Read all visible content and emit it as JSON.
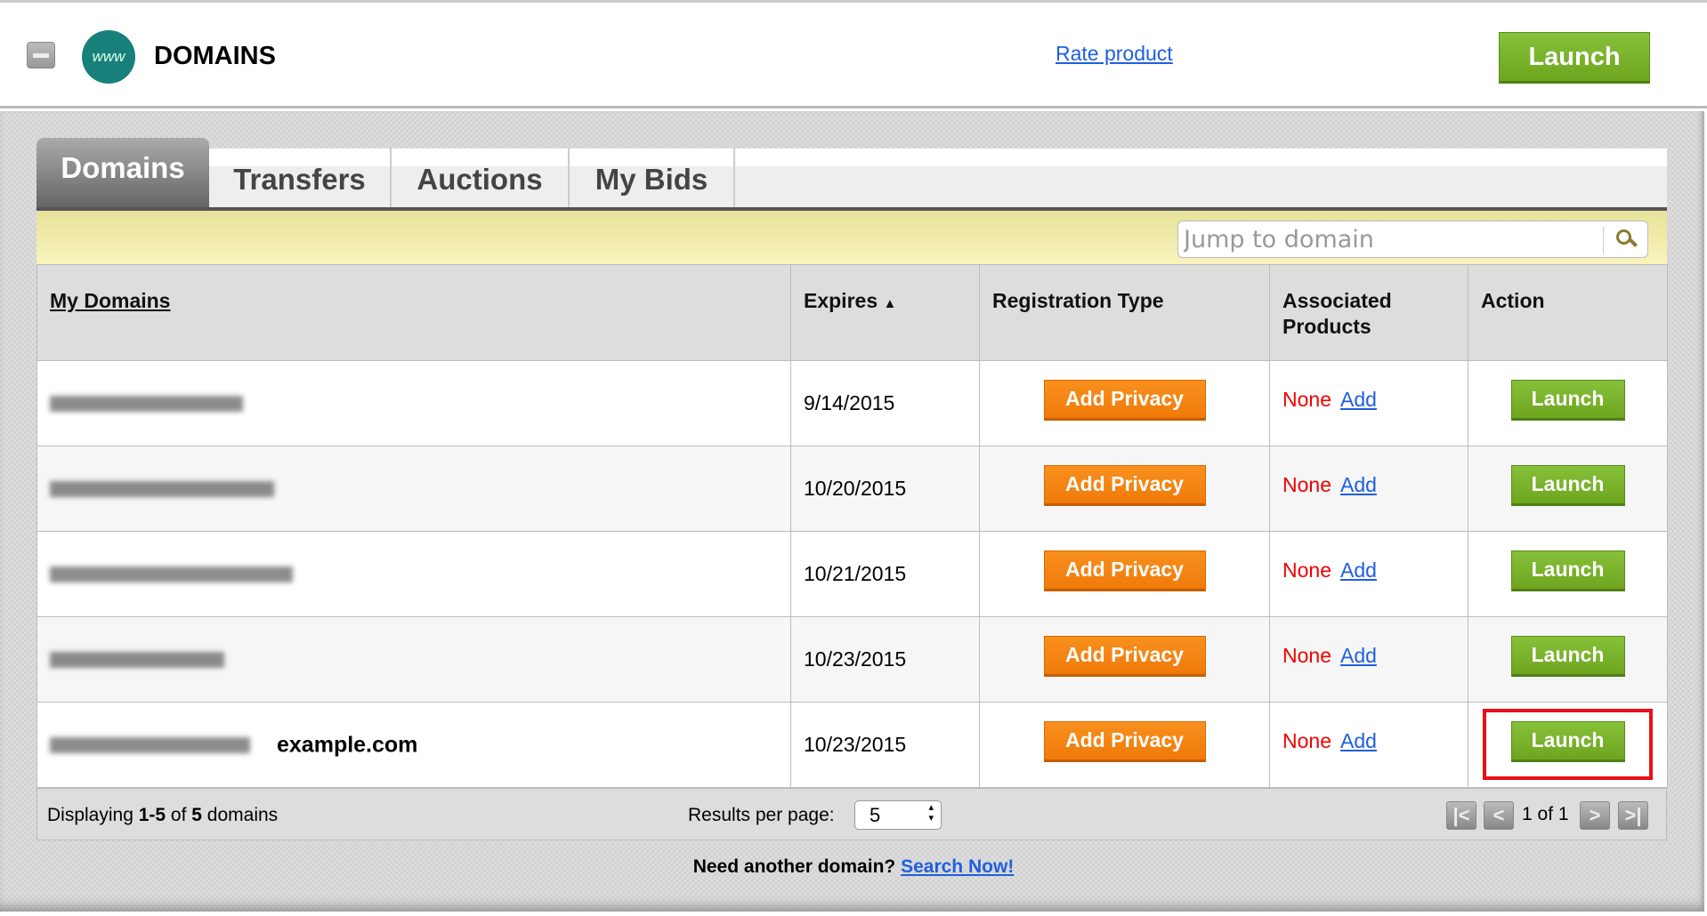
{
  "header": {
    "title": "DOMAINS",
    "logo_text": "www",
    "rate_link": "Rate product",
    "launch_label": "Launch"
  },
  "tabs": [
    {
      "label": "Domains",
      "active": true
    },
    {
      "label": "Transfers"
    },
    {
      "label": "Auctions"
    },
    {
      "label": "My Bids"
    }
  ],
  "search": {
    "placeholder": "Jump to domain",
    "icon": "search-icon"
  },
  "table": {
    "columns": [
      "My Domains",
      "Expires",
      "Registration Type",
      "Associated Products",
      "Action"
    ],
    "sort_indicator": "▲",
    "rows": [
      {
        "domain_note": "",
        "expires": "9/14/2015",
        "registration": "Add Privacy",
        "products": "None",
        "add": "Add",
        "action": "Launch"
      },
      {
        "domain_note": "",
        "expires": "10/20/2015",
        "registration": "Add Privacy",
        "products": "None",
        "add": "Add",
        "action": "Launch"
      },
      {
        "domain_note": "",
        "expires": "10/21/2015",
        "registration": "Add Privacy",
        "products": "None",
        "add": "Add",
        "action": "Launch"
      },
      {
        "domain_note": "",
        "expires": "10/23/2015",
        "registration": "Add Privacy",
        "products": "None",
        "add": "Add",
        "action": "Launch"
      },
      {
        "domain_note": "example.com",
        "expires": "10/23/2015",
        "registration": "Add Privacy",
        "products": "None",
        "add": "Add",
        "action": "Launch",
        "highlighted": true
      }
    ]
  },
  "footer": {
    "displaying_prefix": "Displaying ",
    "range": "1-5",
    "of": " of ",
    "total": "5",
    "suffix": " domains",
    "results_per_page_label": "Results per page:",
    "results_per_page": "5",
    "page_info": "1 of 1",
    "first": "|<",
    "prev": "<",
    "next": ">",
    "last": ">|"
  },
  "bottom": {
    "text": "Need another domain?",
    "link": "Search Now!"
  },
  "colors": {
    "launch_green": "#7ab42c",
    "privacy_orange": "#f5870f",
    "highlight_red": "#e8101a",
    "link_blue": "#1f5fe0",
    "logo_teal": "#17807a"
  }
}
